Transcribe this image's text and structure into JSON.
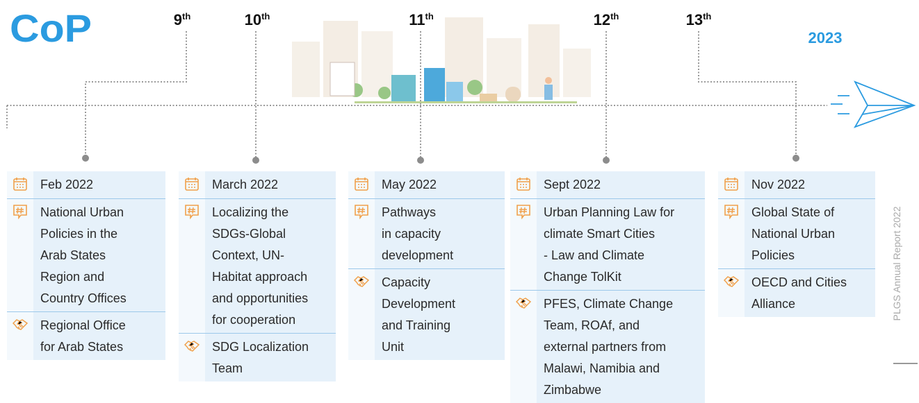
{
  "logo": "CoP",
  "timeline": {
    "sessions": [
      {
        "number": "9",
        "suffix": "th"
      },
      {
        "number": "10",
        "suffix": "th"
      },
      {
        "number": "11",
        "suffix": "th"
      },
      {
        "number": "12",
        "suffix": "th"
      },
      {
        "number": "13",
        "suffix": "th"
      }
    ],
    "year": "2023"
  },
  "cards": [
    {
      "date": "Feb 2022",
      "topic": [
        "National Urban",
        "Policies in the",
        "Arab States",
        "Region and",
        "Country Offices"
      ],
      "partner": [
        "Regional Office",
        "for Arab States"
      ]
    },
    {
      "date": "March 2022",
      "topic": [
        "Localizing the",
        "SDGs-Global",
        "Context, UN-",
        "Habitat approach",
        "and opportunities",
        "for cooperation"
      ],
      "partner": [
        "SDG Localization",
        "Team"
      ]
    },
    {
      "date": "May 2022",
      "topic": [
        "Pathways",
        "in capacity",
        "development"
      ],
      "partner": [
        "Capacity",
        "Development",
        "and Training",
        "Unit"
      ]
    },
    {
      "date": "Sept 2022",
      "topic": [
        "Urban Planning Law for",
        "climate Smart Cities",
        "- Law and Climate",
        "Change TolKit"
      ],
      "partner": [
        "PFES, Climate Change",
        "Team, ROAf, and",
        "external partners from",
        "Malawi, Namibia and",
        "Zimbabwe"
      ]
    },
    {
      "date": "Nov 2022",
      "topic": [
        "Global State of",
        "National Urban",
        "Policies"
      ],
      "partner": [
        "OECD and Cities",
        "Alliance"
      ]
    }
  ],
  "footer": "PLGS Annual Report 2022"
}
